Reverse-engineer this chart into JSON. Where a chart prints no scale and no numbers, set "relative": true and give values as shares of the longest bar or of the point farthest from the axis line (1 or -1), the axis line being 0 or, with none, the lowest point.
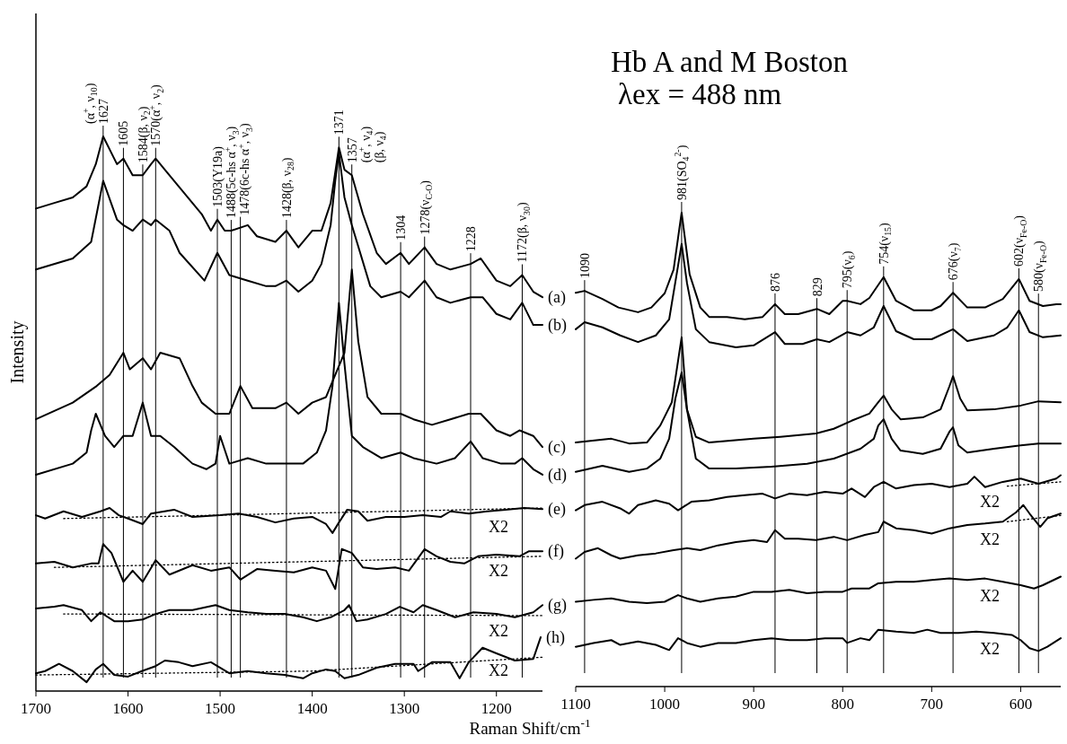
{
  "chart_data": [
    {
      "type": "line",
      "xlabel": "Raman Shift/cm$^{-1}$",
      "ylabel": "Intensity",
      "xlim": [
        1700,
        1150
      ],
      "xticks": [
        1700,
        1600,
        1500,
        1400,
        1300,
        1200
      ],
      "relative": true,
      "tick_labels": "x",
      "series": [
        {
          "name": "(a)",
          "color": "#000000",
          "x": [
            1700,
            1680,
            1660,
            1645,
            1635,
            1627,
            1612,
            1605,
            1595,
            1584,
            1575,
            1570,
            1560,
            1540,
            1520,
            1510,
            1503,
            1495,
            1488,
            1470,
            1460,
            1440,
            1428,
            1415,
            1400,
            1390,
            1380,
            1371,
            1365,
            1357,
            1345,
            1330,
            1320,
            1304,
            1295,
            1278,
            1265,
            1250,
            1228,
            1217,
            1200,
            1185,
            1172,
            1160,
            1150
          ],
          "values": [
            0.87,
            0.88,
            0.89,
            0.91,
            0.95,
            1,
            0.95,
            0.96,
            0.93,
            0.93,
            0.95,
            0.96,
            0.94,
            0.9,
            0.86,
            0.83,
            0.85,
            0.83,
            0.83,
            0.84,
            0.82,
            0.81,
            0.83,
            0.8,
            0.83,
            0.83,
            0.88,
            0.98,
            0.94,
            0.93,
            0.86,
            0.79,
            0.77,
            0.79,
            0.77,
            0.8,
            0.77,
            0.76,
            0.77,
            0.78,
            0.74,
            0.73,
            0.75,
            0.72,
            0.71
          ]
        },
        {
          "name": "(b)",
          "color": "#000000",
          "x": [
            1700,
            1660,
            1640,
            1627,
            1612,
            1605,
            1595,
            1584,
            1575,
            1570,
            1555,
            1544,
            1517,
            1503,
            1490,
            1470,
            1450,
            1440,
            1428,
            1415,
            1400,
            1390,
            1380,
            1375,
            1371,
            1365,
            1357,
            1337,
            1325,
            1304,
            1295,
            1278,
            1265,
            1250,
            1228,
            1215,
            1200,
            1185,
            1172,
            1160,
            1150
          ],
          "values": [
            0.76,
            0.78,
            0.81,
            0.92,
            0.85,
            0.84,
            0.83,
            0.85,
            0.84,
            0.85,
            0.83,
            0.79,
            0.74,
            0.79,
            0.75,
            0.74,
            0.73,
            0.73,
            0.74,
            0.72,
            0.74,
            0.77,
            0.84,
            0.92,
            0.97,
            0.89,
            0.84,
            0.73,
            0.71,
            0.72,
            0.71,
            0.74,
            0.71,
            0.7,
            0.71,
            0.71,
            0.68,
            0.67,
            0.7,
            0.66,
            0.66
          ]
        },
        {
          "name": "(c)",
          "color": "#000000",
          "x": [
            1700,
            1660,
            1634,
            1620,
            1605,
            1598,
            1584,
            1575,
            1565,
            1544,
            1530,
            1520,
            1505,
            1490,
            1478,
            1465,
            1440,
            1428,
            1415,
            1400,
            1385,
            1375,
            1365,
            1357,
            1350,
            1340,
            1325,
            1304,
            1290,
            1270,
            1250,
            1230,
            1217,
            1200,
            1185,
            1175,
            1160,
            1150
          ],
          "values": [
            0.49,
            0.52,
            0.55,
            0.57,
            0.61,
            0.58,
            0.6,
            0.58,
            0.61,
            0.6,
            0.55,
            0.52,
            0.5,
            0.5,
            0.55,
            0.51,
            0.51,
            0.52,
            0.5,
            0.52,
            0.53,
            0.57,
            0.61,
            0.76,
            0.63,
            0.53,
            0.5,
            0.5,
            0.49,
            0.48,
            0.49,
            0.5,
            0.5,
            0.47,
            0.46,
            0.47,
            0.46,
            0.44
          ]
        },
        {
          "name": "(d)",
          "color": "#000000",
          "x": [
            1700,
            1660,
            1645,
            1640,
            1635,
            1625,
            1615,
            1605,
            1595,
            1584,
            1575,
            1565,
            1550,
            1530,
            1515,
            1505,
            1500,
            1490,
            1470,
            1450,
            1428,
            1410,
            1395,
            1385,
            1378,
            1371,
            1365,
            1357,
            1345,
            1325,
            1304,
            1290,
            1265,
            1245,
            1228,
            1215,
            1195,
            1180,
            1172,
            1160,
            1150
          ],
          "values": [
            0.39,
            0.41,
            0.43,
            0.47,
            0.5,
            0.46,
            0.44,
            0.46,
            0.46,
            0.52,
            0.46,
            0.46,
            0.44,
            0.41,
            0.4,
            0.41,
            0.46,
            0.41,
            0.42,
            0.41,
            0.41,
            0.41,
            0.43,
            0.47,
            0.55,
            0.7,
            0.59,
            0.46,
            0.44,
            0.42,
            0.43,
            0.42,
            0.41,
            0.42,
            0.45,
            0.42,
            0.41,
            0.41,
            0.42,
            0.4,
            0.39
          ]
        },
        {
          "name": "(e)",
          "color": "#000000",
          "x": [
            1700,
            1690,
            1670,
            1650,
            1630,
            1620,
            1610,
            1600,
            1584,
            1575,
            1550,
            1530,
            1500,
            1480,
            1460,
            1440,
            1420,
            1400,
            1385,
            1378,
            1371,
            1362,
            1350,
            1340,
            1320,
            1300,
            1280,
            1260,
            1250,
            1230,
            1210,
            1190,
            1170,
            1150
          ],
          "values": [
            0.317,
            0.311,
            0.324,
            0.314,
            0.324,
            0.33,
            0.317,
            0.311,
            0.301,
            0.32,
            0.327,
            0.314,
            0.317,
            0.32,
            0.314,
            0.304,
            0.311,
            0.314,
            0.301,
            0.285,
            0.304,
            0.327,
            0.324,
            0.307,
            0.314,
            0.314,
            0.317,
            0.314,
            0.324,
            0.32,
            0.324,
            0.327,
            0.33,
            0.328
          ]
        },
        {
          "name": "(f)",
          "color": "#000000",
          "x": [
            1700,
            1680,
            1660,
            1640,
            1632,
            1627,
            1618,
            1605,
            1595,
            1584,
            1570,
            1555,
            1530,
            1510,
            1490,
            1478,
            1460,
            1440,
            1420,
            1400,
            1385,
            1375,
            1368,
            1357,
            1345,
            1330,
            1310,
            1295,
            1278,
            1265,
            1250,
            1235,
            1220,
            1200,
            1175,
            1165,
            1150
          ],
          "values": [
            0.23,
            0.233,
            0.223,
            0.23,
            0.23,
            0.265,
            0.249,
            0.197,
            0.217,
            0.197,
            0.236,
            0.21,
            0.227,
            0.217,
            0.223,
            0.201,
            0.22,
            0.217,
            0.214,
            0.223,
            0.217,
            0.184,
            0.256,
            0.249,
            0.223,
            0.22,
            0.223,
            0.217,
            0.256,
            0.243,
            0.233,
            0.23,
            0.243,
            0.246,
            0.243,
            0.252,
            0.252
          ]
        },
        {
          "name": "(g)",
          "color": "#000000",
          "x": [
            1700,
            1680,
            1670,
            1650,
            1640,
            1630,
            1615,
            1600,
            1584,
            1570,
            1555,
            1530,
            1505,
            1490,
            1470,
            1450,
            1430,
            1410,
            1395,
            1380,
            1365,
            1360,
            1352,
            1340,
            1320,
            1305,
            1290,
            1280,
            1265,
            1245,
            1225,
            1200,
            1180,
            1160,
            1150
          ],
          "values": [
            0.149,
            0.152,
            0.155,
            0.146,
            0.126,
            0.142,
            0.126,
            0.126,
            0.129,
            0.139,
            0.146,
            0.146,
            0.155,
            0.146,
            0.142,
            0.139,
            0.139,
            0.133,
            0.126,
            0.133,
            0.146,
            0.155,
            0.126,
            0.129,
            0.139,
            0.152,
            0.142,
            0.155,
            0.146,
            0.133,
            0.142,
            0.139,
            0.133,
            0.142,
            0.155
          ]
        },
        {
          "name": "(h)",
          "color": "#000000",
          "x": [
            1700,
            1690,
            1675,
            1660,
            1645,
            1635,
            1627,
            1615,
            1600,
            1585,
            1570,
            1560,
            1545,
            1530,
            1510,
            1490,
            1470,
            1450,
            1430,
            1410,
            1400,
            1385,
            1375,
            1365,
            1350,
            1330,
            1310,
            1290,
            1285,
            1270,
            1250,
            1240,
            1230,
            1215,
            1200,
            1180,
            1160,
            1152
          ],
          "values": [
            0.032,
            0.036,
            0.049,
            0.036,
            0.016,
            0.039,
            0.049,
            0.029,
            0.026,
            0.036,
            0.045,
            0.055,
            0.052,
            0.045,
            0.052,
            0.032,
            0.036,
            0.032,
            0.029,
            0.023,
            0.032,
            0.039,
            0.036,
            0.023,
            0.029,
            0.042,
            0.049,
            0.049,
            0.036,
            0.052,
            0.052,
            0.023,
            0.052,
            0.078,
            0.068,
            0.055,
            0.058,
            0.097
          ]
        },
        {
          "color": "#000000",
          "line_style": "dotted",
          "x": [
            1670,
            1150
          ],
          "values": [
            0.311,
            0.33
          ]
        },
        {
          "color": "#000000",
          "line_style": "dotted",
          "x": [
            1680,
            1150
          ],
          "values": [
            0.223,
            0.243
          ]
        },
        {
          "color": "#000000",
          "line_style": "dotted",
          "x": [
            1670,
            1150
          ],
          "values": [
            0.139,
            0.136
          ]
        },
        {
          "color": "#000000",
          "line_style": "dotted",
          "x": [
            1700,
            1400,
            1150
          ],
          "values": [
            0.029,
            0.036,
            0.061
          ]
        }
      ],
      "ref_lines": [
        {
          "axis": "x",
          "value": 1627,
          "label": "1627\n(α$^{+}$, ν$_{10}$)"
        },
        {
          "axis": "x",
          "value": 1605,
          "label": "1605"
        },
        {
          "axis": "x",
          "value": 1584,
          "label": "1584(β, ν$_{2}$)"
        },
        {
          "axis": "x",
          "value": 1570,
          "label": "1570(α$^{+}$, ν$_{2}$)"
        },
        {
          "axis": "x",
          "value": 1503,
          "label": "1503(Y19a)"
        },
        {
          "axis": "x",
          "value": 1488,
          "label": "1488(5c-hs α$^{+}$, ν$_{3}$)"
        },
        {
          "axis": "x",
          "value": 1478,
          "label": "1478(6c-hs α$^{+}$, ν$_{3}$)"
        },
        {
          "axis": "x",
          "value": 1428,
          "label": "1428(β, ν$_{28}$)"
        },
        {
          "axis": "x",
          "value": 1371,
          "label": "1371"
        },
        {
          "axis": "x",
          "value": 1357,
          "label": "1357\n(α$^{+}$, ν$_{4}$)\n(β, ν$_{4}$)"
        },
        {
          "axis": "x",
          "value": 1304,
          "label": "1304"
        },
        {
          "axis": "x",
          "value": 1278,
          "label": "1278(ν$_{C-O}$)"
        },
        {
          "axis": "x",
          "value": 1228,
          "label": "1228"
        },
        {
          "axis": "x",
          "value": 1172,
          "label": "1172(β, ν$_{30}$)"
        }
      ],
      "annotations": [
        "X2",
        "X2",
        "X2",
        "X2"
      ]
    },
    {
      "type": "line",
      "title": "Hb A and M Boston",
      "subtitle": "λex = 488 nm",
      "xlim": [
        1100,
        555
      ],
      "xticks": [
        1100,
        1000,
        900,
        800,
        700,
        600
      ],
      "relative": true,
      "tick_labels": "x",
      "series": [
        {
          "color": "#000000",
          "x": [
            1100,
            1090,
            1070,
            1052,
            1030,
            1015,
            1000,
            990,
            981,
            972,
            960,
            950,
            930,
            910,
            890,
            876,
            865,
            850,
            829,
            815,
            800,
            795,
            780,
            770,
            754,
            740,
            720,
            700,
            690,
            676,
            660,
            640,
            620,
            602,
            590,
            575,
            560,
            555
          ],
          "values": [
            0.831,
            0.835,
            0.818,
            0.8,
            0.79,
            0.8,
            0.83,
            0.88,
            1,
            0.87,
            0.8,
            0.78,
            0.78,
            0.775,
            0.78,
            0.807,
            0.786,
            0.786,
            0.797,
            0.786,
            0.814,
            0.814,
            0.807,
            0.82,
            0.864,
            0.814,
            0.794,
            0.794,
            0.803,
            0.831,
            0.8,
            0.8,
            0.818,
            0.86,
            0.814,
            0.803,
            0.807,
            0.807
          ]
        },
        {
          "color": "#000000",
          "x": [
            1100,
            1090,
            1070,
            1050,
            1030,
            1010,
            995,
            985,
            981,
            975,
            965,
            950,
            920,
            900,
            876,
            865,
            845,
            829,
            815,
            795,
            780,
            765,
            754,
            740,
            720,
            700,
            676,
            660,
            630,
            615,
            602,
            590,
            575,
            555
          ],
          "values": [
            0.754,
            0.769,
            0.758,
            0.741,
            0.727,
            0.741,
            0.775,
            0.888,
            0.934,
            0.852,
            0.754,
            0.727,
            0.716,
            0.72,
            0.748,
            0.723,
            0.723,
            0.733,
            0.727,
            0.748,
            0.741,
            0.758,
            0.803,
            0.75,
            0.733,
            0.733,
            0.754,
            0.729,
            0.741,
            0.758,
            0.794,
            0.748,
            0.737,
            0.741
          ]
        },
        {
          "color": "#000000",
          "x": [
            1100,
            1060,
            1040,
            1020,
            1005,
            992,
            981,
            975,
            965,
            950,
            900,
            870,
            830,
            810,
            790,
            770,
            760,
            754,
            745,
            735,
            710,
            690,
            680,
            676,
            668,
            660,
            630,
            600,
            580,
            555
          ],
          "values": [
            0.515,
            0.523,
            0.513,
            0.515,
            0.551,
            0.6,
            0.737,
            0.585,
            0.527,
            0.515,
            0.523,
            0.527,
            0.534,
            0.544,
            0.561,
            0.576,
            0.6,
            0.614,
            0.585,
            0.564,
            0.568,
            0.585,
            0.634,
            0.655,
            0.608,
            0.583,
            0.585,
            0.593,
            0.602,
            0.6
          ]
        },
        {
          "color": "#000000",
          "x": [
            1100,
            1070,
            1040,
            1020,
            1005,
            995,
            988,
            981,
            975,
            965,
            950,
            920,
            880,
            840,
            810,
            780,
            765,
            760,
            754,
            745,
            735,
            710,
            690,
            680,
            676,
            670,
            660,
            630,
            600,
            580,
            555
          ],
          "values": [
            0.453,
            0.466,
            0.453,
            0.46,
            0.481,
            0.523,
            0.608,
            0.663,
            0.585,
            0.481,
            0.46,
            0.46,
            0.464,
            0.47,
            0.481,
            0.502,
            0.523,
            0.551,
            0.564,
            0.523,
            0.498,
            0.491,
            0.502,
            0.538,
            0.547,
            0.509,
            0.494,
            0.502,
            0.509,
            0.513,
            0.513
          ]
        },
        {
          "color": "#000000",
          "x": [
            1100,
            1090,
            1070,
            1050,
            1040,
            1030,
            1010,
            995,
            985,
            970,
            950,
            930,
            910,
            890,
            876,
            860,
            840,
            820,
            800,
            790,
            775,
            765,
            754,
            740,
            720,
            700,
            680,
            660,
            652,
            640,
            620,
            600,
            580,
            560,
            555
          ],
          "values": [
            0.372,
            0.383,
            0.39,
            0.376,
            0.365,
            0.383,
            0.393,
            0.386,
            0.372,
            0.39,
            0.393,
            0.4,
            0.404,
            0.407,
            0.397,
            0.407,
            0.404,
            0.411,
            0.407,
            0.418,
            0.4,
            0.421,
            0.432,
            0.418,
            0.425,
            0.428,
            0.421,
            0.428,
            0.443,
            0.421,
            0.432,
            0.439,
            0.428,
            0.439,
            0.446
          ]
        },
        {
          "color": "#000000",
          "x": [
            1100,
            1090,
            1075,
            1060,
            1050,
            1030,
            1010,
            990,
            975,
            960,
            940,
            920,
            900,
            885,
            876,
            865,
            850,
            830,
            810,
            795,
            775,
            760,
            754,
            740,
            720,
            700,
            680,
            660,
            640,
            620,
            605,
            597,
            590,
            578,
            570,
            555
          ],
          "values": [
            0.27,
            0.284,
            0.292,
            0.277,
            0.27,
            0.277,
            0.281,
            0.288,
            0.292,
            0.288,
            0.298,
            0.305,
            0.309,
            0.305,
            0.33,
            0.312,
            0.312,
            0.309,
            0.316,
            0.309,
            0.32,
            0.326,
            0.348,
            0.334,
            0.33,
            0.323,
            0.334,
            0.341,
            0.344,
            0.348,
            0.368,
            0.383,
            0.365,
            0.337,
            0.355,
            0.365
          ]
        },
        {
          "color": "#000000",
          "x": [
            1100,
            1080,
            1060,
            1040,
            1020,
            1000,
            985,
            975,
            960,
            940,
            920,
            900,
            880,
            860,
            840,
            820,
            800,
            790,
            770,
            760,
            740,
            720,
            700,
            680,
            660,
            640,
            620,
            600,
            585,
            575,
            555
          ],
          "values": [
            0.179,
            0.183,
            0.186,
            0.179,
            0.176,
            0.179,
            0.193,
            0.186,
            0.179,
            0.186,
            0.19,
            0.2,
            0.2,
            0.204,
            0.197,
            0.2,
            0.2,
            0.207,
            0.207,
            0.218,
            0.221,
            0.221,
            0.225,
            0.228,
            0.225,
            0.228,
            0.221,
            0.214,
            0.207,
            0.214,
            0.232
          ]
        },
        {
          "color": "#000000",
          "x": [
            1100,
            1080,
            1060,
            1050,
            1030,
            1010,
            995,
            985,
            975,
            960,
            940,
            920,
            900,
            880,
            860,
            840,
            820,
            800,
            795,
            780,
            770,
            760,
            740,
            720,
            705,
            690,
            670,
            650,
            630,
            610,
            600,
            590,
            580,
            570,
            555
          ],
          "values": [
            0.084,
            0.092,
            0.098,
            0.088,
            0.095,
            0.088,
            0.077,
            0.102,
            0.092,
            0.084,
            0.092,
            0.092,
            0.098,
            0.102,
            0.098,
            0.098,
            0.102,
            0.102,
            0.092,
            0.102,
            0.098,
            0.12,
            0.116,
            0.113,
            0.12,
            0.113,
            0.113,
            0.116,
            0.113,
            0.109,
            0.098,
            0.081,
            0.075,
            0.084,
            0.102
          ]
        },
        {
          "color": "#000000",
          "line_style": "dotted",
          "x": [
            615,
            555
          ],
          "values": [
            0.423,
            0.432
          ]
        },
        {
          "color": "#000000",
          "line_style": "dotted",
          "x": [
            615,
            555
          ],
          "values": [
            0.348,
            0.361
          ]
        }
      ],
      "ref_lines": [
        {
          "axis": "x",
          "value": 1090,
          "label": "1090"
        },
        {
          "axis": "x",
          "value": 981,
          "label": "981(SO$_{4}$$^{2-}$)"
        },
        {
          "axis": "x",
          "value": 876,
          "label": "876"
        },
        {
          "axis": "x",
          "value": 829,
          "label": "829"
        },
        {
          "axis": "x",
          "value": 795,
          "label": "795(ν$_{6}$)"
        },
        {
          "axis": "x",
          "value": 754,
          "label": "754(ν$_{15}$)"
        },
        {
          "axis": "x",
          "value": 676,
          "label": "676(ν$_{7}$)"
        },
        {
          "axis": "x",
          "value": 602,
          "label": "602(ν$_{Fe-O}$)"
        },
        {
          "axis": "x",
          "value": 580,
          "label": "580(ν$_{Fe-O}$)"
        }
      ],
      "annotations": [
        "X2",
        "X2",
        "X2",
        "X2"
      ]
    }
  ]
}
